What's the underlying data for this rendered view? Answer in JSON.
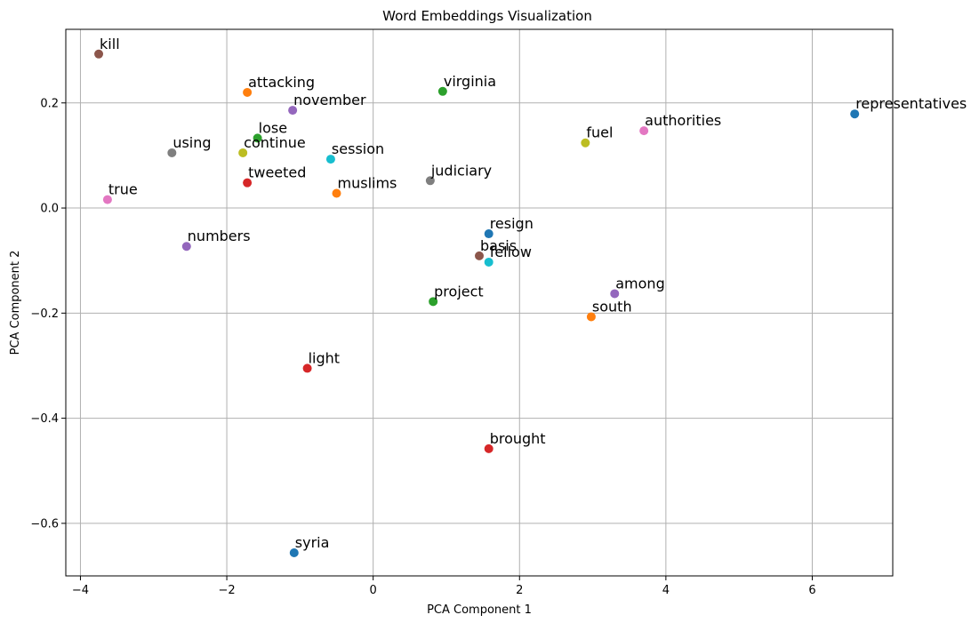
{
  "chart_data": {
    "type": "scatter",
    "title": "Word Embeddings Visualization",
    "xlabel": "PCA Component 1",
    "ylabel": "PCA Component 2",
    "xlim": [
      -4.2,
      7.1
    ],
    "ylim": [
      -0.7,
      0.34
    ],
    "xticks": [
      -4,
      -2,
      0,
      2,
      4,
      6
    ],
    "yticks": [
      -0.6,
      -0.4,
      -0.2,
      0.0,
      0.2
    ],
    "xtick_labels": [
      "−4",
      "−2",
      "0",
      "2",
      "4",
      "6"
    ],
    "ytick_labels": [
      "−0.6",
      "−0.4",
      "−0.2",
      "0.0",
      "0.2"
    ],
    "grid": true,
    "points": [
      {
        "label": "kill",
        "x": -3.75,
        "y": 0.293,
        "color": "#8c564b"
      },
      {
        "label": "attacking",
        "x": -1.72,
        "y": 0.22,
        "color": "#ff7f0e"
      },
      {
        "label": "virginia",
        "x": 0.95,
        "y": 0.222,
        "color": "#2ca02c"
      },
      {
        "label": "november",
        "x": -1.1,
        "y": 0.186,
        "color": "#9467bd"
      },
      {
        "label": "representatives",
        "x": 6.58,
        "y": 0.179,
        "color": "#1f77b4"
      },
      {
        "label": "lose",
        "x": -1.58,
        "y": 0.133,
        "color": "#2ca02c"
      },
      {
        "label": "authorities",
        "x": 3.7,
        "y": 0.147,
        "color": "#e377c2"
      },
      {
        "label": "fuel",
        "x": 2.9,
        "y": 0.124,
        "color": "#bcbd22"
      },
      {
        "label": "using",
        "x": -2.75,
        "y": 0.105,
        "color": "#7f7f7f"
      },
      {
        "label": "continue",
        "x": -1.78,
        "y": 0.105,
        "color": "#bcbd22"
      },
      {
        "label": "session",
        "x": -0.58,
        "y": 0.093,
        "color": "#17becf"
      },
      {
        "label": "judiciary",
        "x": 0.78,
        "y": 0.052,
        "color": "#7f7f7f"
      },
      {
        "label": "tweeted",
        "x": -1.72,
        "y": 0.048,
        "color": "#d62728"
      },
      {
        "label": "muslims",
        "x": -0.5,
        "y": 0.028,
        "color": "#ff7f0e"
      },
      {
        "label": "true",
        "x": -3.63,
        "y": 0.016,
        "color": "#e377c2"
      },
      {
        "label": "resign",
        "x": 1.58,
        "y": -0.049,
        "color": "#1f77b4"
      },
      {
        "label": "numbers",
        "x": -2.55,
        "y": -0.073,
        "color": "#9467bd"
      },
      {
        "label": "basis",
        "x": 1.45,
        "y": -0.091,
        "color": "#8c564b"
      },
      {
        "label": "fellow",
        "x": 1.58,
        "y": -0.103,
        "color": "#17becf"
      },
      {
        "label": "among",
        "x": 3.3,
        "y": -0.163,
        "color": "#9467bd"
      },
      {
        "label": "project",
        "x": 0.82,
        "y": -0.178,
        "color": "#2ca02c"
      },
      {
        "label": "south",
        "x": 2.98,
        "y": -0.207,
        "color": "#ff7f0e"
      },
      {
        "label": "light",
        "x": -0.9,
        "y": -0.305,
        "color": "#d62728"
      },
      {
        "label": "brought",
        "x": 1.58,
        "y": -0.458,
        "color": "#d62728"
      },
      {
        "label": "syria",
        "x": -1.08,
        "y": -0.656,
        "color": "#1f77b4"
      }
    ]
  }
}
